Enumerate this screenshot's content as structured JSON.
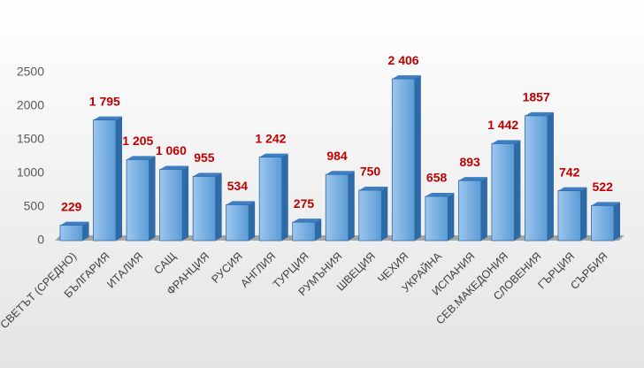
{
  "chart_data": {
    "type": "bar",
    "categories": [
      "СВЕТЪТ (СРЕДНО)",
      "БЪЛГАРИЯ",
      "ИТАЛИЯ",
      "САЩ",
      "ФРАНЦИЯ",
      "РУСИЯ",
      "АНГЛИЯ",
      "ТУРЦИЯ",
      "РУМЪНИЯ",
      "ШВЕЦИЯ",
      "ЧЕХИЯ",
      "УКРАЙНА",
      "ИСПАНИЯ",
      "СЕВ.МАКЕДОНИЯ",
      "СЛОВЕНИЯ",
      "ГЪРЦИЯ",
      "СЪРБИЯ"
    ],
    "values": [
      229,
      1795,
      1205,
      1060,
      955,
      534,
      1242,
      275,
      984,
      750,
      2406,
      658,
      893,
      1442,
      1857,
      742,
      522
    ],
    "value_labels": [
      "229",
      "1 795",
      "1 205",
      "1 060",
      "955",
      "534",
      "1 242",
      "275",
      "984",
      "750",
      "2 406",
      "658",
      "893",
      "1 442",
      "1857",
      "742",
      "522"
    ],
    "color": "#5b9bd5",
    "ylim": [
      0,
      2500
    ],
    "yticks": [
      0,
      500,
      1000,
      1500,
      2000,
      2500
    ],
    "grid": false
  }
}
